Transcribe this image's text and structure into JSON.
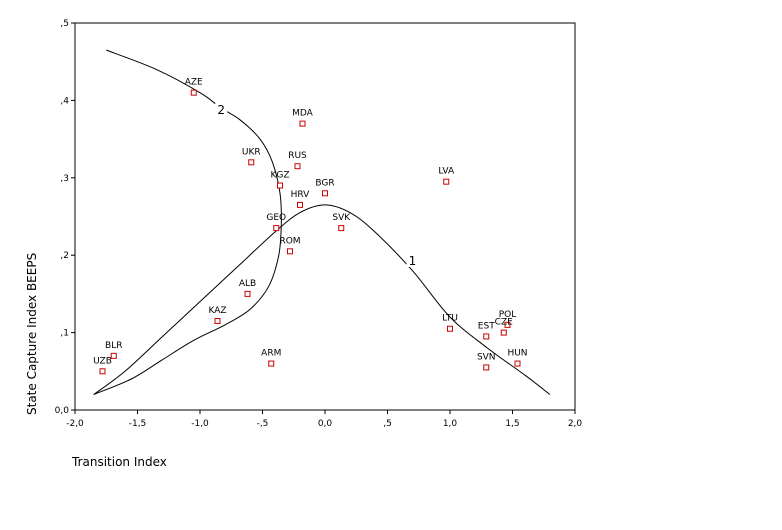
{
  "chart_data": {
    "type": "scatter",
    "xlabel": "Transition Index",
    "ylabel": "State Capture Index BEEPS",
    "xlim": [
      -2.0,
      2.0
    ],
    "ylim": [
      0.0,
      0.5
    ],
    "xticks": [
      "-2,0",
      "-1,5",
      "-1,0",
      "-,5",
      "0,0",
      ",5",
      "1,0",
      "1,5",
      "2,0"
    ],
    "xtick_values": [
      -2.0,
      -1.5,
      -1.0,
      -0.5,
      0.0,
      0.5,
      1.0,
      1.5,
      2.0
    ],
    "yticks": [
      "0,0",
      ",1",
      ",2",
      ",3",
      ",4",
      ",5"
    ],
    "ytick_values": [
      0.0,
      0.1,
      0.2,
      0.3,
      0.4,
      0.5
    ],
    "grid": false,
    "marker_color": "#cc0000",
    "points": [
      {
        "label": "AZE",
        "x": -1.05,
        "y": 0.41
      },
      {
        "label": "MDA",
        "x": -0.18,
        "y": 0.37
      },
      {
        "label": "UKR",
        "x": -0.59,
        "y": 0.32
      },
      {
        "label": "RUS",
        "x": -0.22,
        "y": 0.315
      },
      {
        "label": "KGZ",
        "x": -0.36,
        "y": 0.29
      },
      {
        "label": "BGR",
        "x": 0.0,
        "y": 0.28
      },
      {
        "label": "HRV",
        "x": -0.2,
        "y": 0.265
      },
      {
        "label": "GEO",
        "x": -0.39,
        "y": 0.235
      },
      {
        "label": "SVK",
        "x": 0.13,
        "y": 0.235
      },
      {
        "label": "ROM",
        "x": -0.28,
        "y": 0.205
      },
      {
        "label": "LVA",
        "x": 0.97,
        "y": 0.295
      },
      {
        "label": "ALB",
        "x": -0.62,
        "y": 0.15
      },
      {
        "label": "KAZ",
        "x": -0.86,
        "y": 0.115
      },
      {
        "label": "BLR",
        "x": -1.69,
        "y": 0.07
      },
      {
        "label": "UZB",
        "x": -1.78,
        "y": 0.05
      },
      {
        "label": "ARM",
        "x": -0.43,
        "y": 0.06
      },
      {
        "label": "LTU",
        "x": 1.0,
        "y": 0.105
      },
      {
        "label": "EST",
        "x": 1.29,
        "y": 0.095
      },
      {
        "label": "POL",
        "x": 1.46,
        "y": 0.11
      },
      {
        "label": "CZE",
        "x": 1.43,
        "y": 0.1
      },
      {
        "label": "SVN",
        "x": 1.29,
        "y": 0.055
      },
      {
        "label": "HUN",
        "x": 1.54,
        "y": 0.06
      }
    ],
    "curves": [
      {
        "name": "1",
        "label_at": {
          "x": 0.7,
          "y": 0.19
        },
        "x": [
          -1.85,
          -1.6,
          -1.3,
          -1.0,
          -0.7,
          -0.4,
          -0.2,
          0.0,
          0.2,
          0.4,
          0.7,
          1.0,
          1.3,
          1.6,
          1.8
        ],
        "y": [
          0.02,
          0.05,
          0.095,
          0.14,
          0.185,
          0.23,
          0.255,
          0.265,
          0.255,
          0.23,
          0.18,
          0.12,
          0.08,
          0.045,
          0.02
        ]
      },
      {
        "name": "2",
        "label_at": {
          "x": -0.83,
          "y": 0.385
        },
        "x": [
          -1.75,
          -1.35,
          -1.0,
          -0.83,
          -0.68,
          -0.52,
          -0.42,
          -0.36,
          -0.35,
          -0.37,
          -0.45,
          -0.6,
          -0.8,
          -1.05,
          -1.3,
          -1.55,
          -1.85
        ],
        "y": [
          0.465,
          0.44,
          0.41,
          0.39,
          0.375,
          0.35,
          0.32,
          0.28,
          0.24,
          0.2,
          0.16,
          0.13,
          0.11,
          0.09,
          0.065,
          0.04,
          0.02
        ]
      }
    ]
  }
}
